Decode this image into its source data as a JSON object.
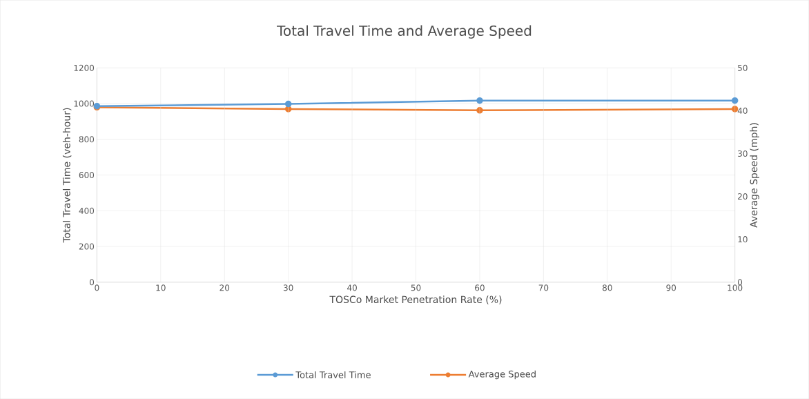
{
  "chart_data": {
    "type": "line",
    "title": "Total Travel Time and Average Speed",
    "xlabel": "TOSCo Market Penetration Rate (%)",
    "ylabel": "Total Travel Time (veh-hour)",
    "y2label": "Average Speed (mph)",
    "x": [
      0,
      30,
      60,
      100
    ],
    "series": [
      {
        "name": "Total Travel Time",
        "color": "#5b9bd5",
        "values": [
          986,
          998,
          1017,
          1017
        ]
      },
      {
        "name": "Average Speed",
        "color": "#ed7d31",
        "values": [
          40.8,
          40.4,
          40.1,
          40.4
        ],
        "axis": "y2"
      }
    ],
    "xlim": [
      0,
      100
    ],
    "xticks": [
      0,
      10,
      20,
      30,
      40,
      50,
      60,
      70,
      80,
      90,
      100
    ],
    "ylim": [
      0,
      1200
    ],
    "yticks": [
      0,
      200,
      400,
      600,
      800,
      1000,
      1200
    ],
    "y2lim": [
      0,
      50
    ],
    "y2ticks": [
      0,
      10,
      20,
      30,
      40,
      50
    ],
    "grid": true,
    "legend": "bottom",
    "marker": "circle",
    "line_style": "solid"
  }
}
